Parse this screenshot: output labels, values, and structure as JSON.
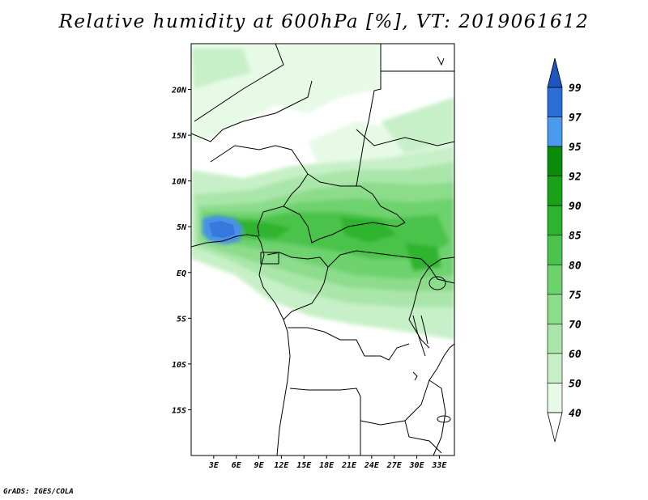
{
  "title": "Relative humidity at 600hPa [%], VT: 2019061612",
  "credit": "GrADS: IGES/COLA",
  "map": {
    "lon_range": [
      0,
      35
    ],
    "lat_range": [
      -20,
      25
    ],
    "lat_ticks": [
      {
        "value": 20,
        "label": "20N"
      },
      {
        "value": 15,
        "label": "15N"
      },
      {
        "value": 10,
        "label": "10N"
      },
      {
        "value": 5,
        "label": "5N"
      },
      {
        "value": 0,
        "label": "EQ"
      },
      {
        "value": -5,
        "label": "5S"
      },
      {
        "value": -10,
        "label": "10S"
      },
      {
        "value": -15,
        "label": "15S"
      }
    ],
    "lon_ticks": [
      {
        "value": 3,
        "label": "3E"
      },
      {
        "value": 6,
        "label": "6E"
      },
      {
        "value": 9,
        "label": "9E"
      },
      {
        "value": 12,
        "label": "12E"
      },
      {
        "value": 15,
        "label": "15E"
      },
      {
        "value": 18,
        "label": "18E"
      },
      {
        "value": 21,
        "label": "21E"
      },
      {
        "value": 24,
        "label": "24E"
      },
      {
        "value": 27,
        "label": "27E"
      },
      {
        "value": 30,
        "label": "30E"
      },
      {
        "value": 33,
        "label": "33E"
      }
    ]
  },
  "colorbar": {
    "levels": [
      "99",
      "97",
      "95",
      "92",
      "90",
      "85",
      "80",
      "75",
      "70",
      "60",
      "50",
      "40"
    ],
    "colors": [
      "#ffffff",
      "#e6fae6",
      "#c8f0c8",
      "#aae6aa",
      "#8cdc8c",
      "#6ed26e",
      "#4cc34c",
      "#2db42d",
      "#17a217",
      "#0a8c0a",
      "#4a9af0",
      "#2a6ed8",
      "#1e55c0"
    ]
  },
  "colors": {
    "land_outline": "#000000",
    "background": "#ffffff",
    "wet_core": "#4a90e8"
  }
}
